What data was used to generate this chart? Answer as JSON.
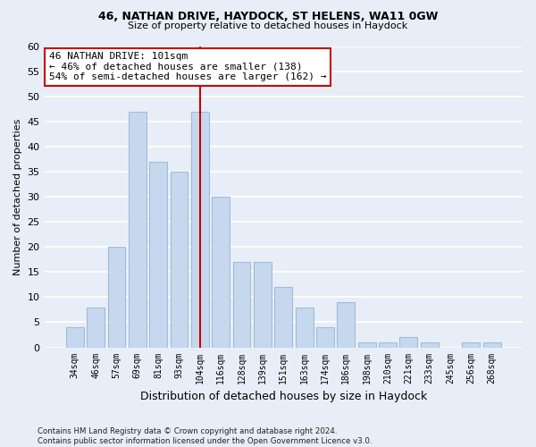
{
  "title1": "46, NATHAN DRIVE, HAYDOCK, ST HELENS, WA11 0GW",
  "title2": "Size of property relative to detached houses in Haydock",
  "xlabel": "Distribution of detached houses by size in Haydock",
  "ylabel": "Number of detached properties",
  "categories": [
    "34sqm",
    "46sqm",
    "57sqm",
    "69sqm",
    "81sqm",
    "93sqm",
    "104sqm",
    "116sqm",
    "128sqm",
    "139sqm",
    "151sqm",
    "163sqm",
    "174sqm",
    "186sqm",
    "198sqm",
    "210sqm",
    "221sqm",
    "233sqm",
    "245sqm",
    "256sqm",
    "268sqm"
  ],
  "values": [
    4,
    8,
    20,
    47,
    37,
    35,
    47,
    30,
    17,
    17,
    12,
    8,
    4,
    9,
    1,
    1,
    2,
    1,
    0,
    1,
    1
  ],
  "bar_color": "#c5d8ed",
  "bar_edge_color": "#a0bcd8",
  "vline_color": "#cc0000",
  "annotation_text": "46 NATHAN DRIVE: 101sqm\n← 46% of detached houses are smaller (138)\n54% of semi-detached houses are larger (162) →",
  "annotation_box_color": "#ffffff",
  "annotation_box_edge": "#cc0000",
  "ylim": [
    0,
    60
  ],
  "yticks": [
    0,
    5,
    10,
    15,
    20,
    25,
    30,
    35,
    40,
    45,
    50,
    55,
    60
  ],
  "footer": "Contains HM Land Registry data © Crown copyright and database right 2024.\nContains public sector information licensed under the Open Government Licence v3.0.",
  "bg_color": "#e8eef8",
  "plot_bg_color": "#e8eef8",
  "grid_color": "#ffffff"
}
